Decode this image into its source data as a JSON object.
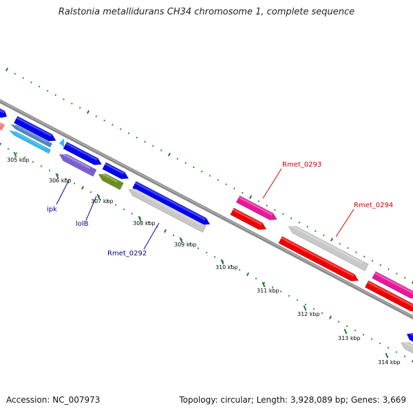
{
  "title": "Ralstonia metallidurans CH34 chromosome 1, complete sequence",
  "accession_label": "Accession: NC_007973",
  "summary": "Topology: circular; Length: 3,928,089 bp; Genes: 3,669",
  "colors": {
    "forward_dark_blue": "#0000ee",
    "sky_blue": "#33bbee",
    "steel_blue": "#4f86c6",
    "violet": "#7a5fd0",
    "olive": "#6a8f1f",
    "grey": "#c8c8c8",
    "magenta": "#e6179a",
    "red": "#ee0000",
    "salmon": "#f08080",
    "backbone": "#808080",
    "tick_green": "#1a7a1a",
    "label_blue": "#00008b",
    "label_red": "#cc0000"
  },
  "kbp_ticks": [
    "305 kbp",
    "306 kbp",
    "307 kbp",
    "308 kbp",
    "309 kbp",
    "310 kbp",
    "311 kbp",
    "312 kbp",
    "313 kbp",
    "314 kbp"
  ],
  "gene_labels": [
    "ipk",
    "lolB",
    "Rmet_0292",
    "Rmet_0293",
    "Rmet_0294"
  ]
}
